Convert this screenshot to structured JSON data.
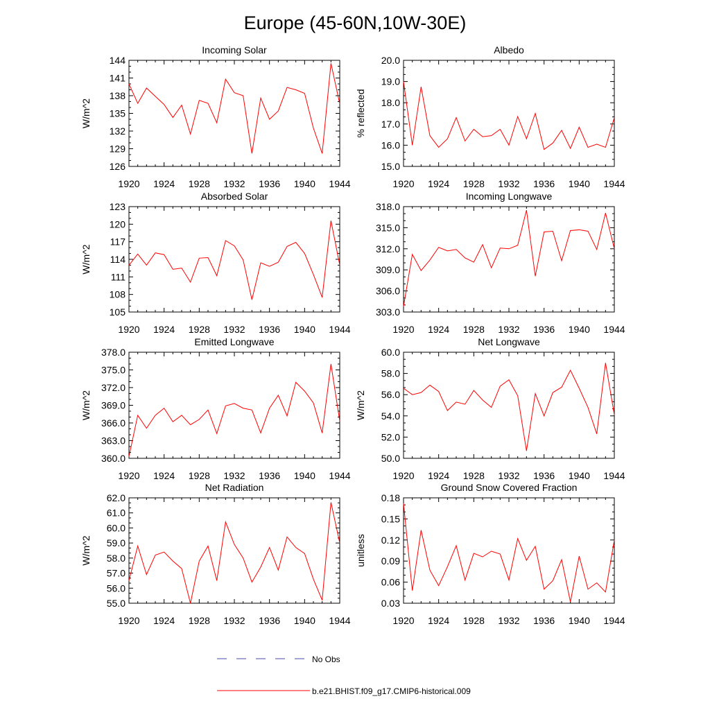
{
  "title": "Europe (45-60N,10W-30E)",
  "legend": {
    "obs_label": "No Obs",
    "obs_color": "#4a4aa8",
    "model_label": "b.e21.BHIST.f09_g17.CMIP6-historical.009",
    "model_color": "#ff0000"
  },
  "chart_data": [
    {
      "type": "line",
      "title": "Incoming Solar",
      "ylabel": "W/m^2",
      "xlim": [
        1920,
        1944
      ],
      "ylim": [
        126,
        144
      ],
      "yticks": [
        "126",
        "129",
        "132",
        "135",
        "138",
        "141",
        "144"
      ],
      "xticks": [
        "1920",
        "1924",
        "1928",
        "1932",
        "1936",
        "1940",
        "1944"
      ],
      "x": [
        1920,
        1921,
        1922,
        1923,
        1924,
        1925,
        1926,
        1927,
        1928,
        1929,
        1930,
        1931,
        1932,
        1933,
        1934,
        1935,
        1936,
        1937,
        1938,
        1939,
        1940,
        1941,
        1942,
        1943,
        1944
      ],
      "series": [
        {
          "values": [
            140.0,
            136.7,
            139.3,
            137.9,
            136.5,
            134.3,
            136.4,
            131.5,
            137.2,
            136.7,
            133.4,
            140.8,
            138.5,
            138.0,
            128.2,
            137.6,
            134.0,
            135.4,
            139.4,
            139.0,
            138.4,
            132.5,
            128.2,
            143.5,
            136.6
          ]
        }
      ]
    },
    {
      "type": "line",
      "title": "Albedo",
      "ylabel": "% reflected",
      "xlim": [
        1920,
        1944
      ],
      "ylim": [
        15,
        20
      ],
      "yticks": [
        "15.0",
        "16.0",
        "17.0",
        "18.0",
        "19.0",
        "20.0"
      ],
      "xticks": [
        "1920",
        "1924",
        "1928",
        "1932",
        "1936",
        "1940",
        "1944"
      ],
      "x": [
        1920,
        1921,
        1922,
        1923,
        1924,
        1925,
        1926,
        1927,
        1928,
        1929,
        1930,
        1931,
        1932,
        1933,
        1934,
        1935,
        1936,
        1937,
        1938,
        1939,
        1940,
        1941,
        1942,
        1943,
        1944
      ],
      "series": [
        {
          "values": [
            19.0,
            16.0,
            18.75,
            16.45,
            15.9,
            16.3,
            17.3,
            16.2,
            16.75,
            16.4,
            16.45,
            16.75,
            16.0,
            17.35,
            16.3,
            17.5,
            15.8,
            16.1,
            16.7,
            15.85,
            16.85,
            15.9,
            16.05,
            15.9,
            17.3
          ]
        }
      ]
    },
    {
      "type": "line",
      "title": "Absorbed Solar",
      "ylabel": "W/m^2",
      "xlim": [
        1920,
        1944
      ],
      "ylim": [
        105,
        123
      ],
      "yticks": [
        "105",
        "108",
        "111",
        "114",
        "117",
        "120",
        "123"
      ],
      "xticks": [
        "1920",
        "1924",
        "1928",
        "1932",
        "1936",
        "1940",
        "1944"
      ],
      "x": [
        1920,
        1921,
        1922,
        1923,
        1924,
        1925,
        1926,
        1927,
        1928,
        1929,
        1930,
        1931,
        1932,
        1933,
        1934,
        1935,
        1936,
        1937,
        1938,
        1939,
        1940,
        1941,
        1942,
        1943,
        1944
      ],
      "series": [
        {
          "values": [
            113.0,
            114.9,
            113.0,
            115.1,
            114.8,
            112.3,
            112.5,
            110.1,
            114.2,
            114.3,
            111.2,
            117.2,
            116.3,
            113.9,
            107.1,
            113.4,
            112.8,
            113.5,
            116.2,
            116.9,
            115.0,
            111.4,
            107.5,
            120.6,
            113.0
          ]
        }
      ]
    },
    {
      "type": "line",
      "title": "Incoming Longwave",
      "ylabel": "",
      "xlim": [
        1920,
        1944
      ],
      "ylim": [
        303,
        318
      ],
      "yticks": [
        "303.0",
        "306.0",
        "309.0",
        "312.0",
        "315.0",
        "318.0"
      ],
      "xticks": [
        "1920",
        "1924",
        "1928",
        "1932",
        "1936",
        "1940",
        "1944"
      ],
      "x": [
        1920,
        1921,
        1922,
        1923,
        1924,
        1925,
        1926,
        1927,
        1928,
        1929,
        1930,
        1931,
        1932,
        1933,
        1934,
        1935,
        1936,
        1937,
        1938,
        1939,
        1940,
        1941,
        1942,
        1943,
        1944
      ],
      "series": [
        {
          "values": [
            303.8,
            311.2,
            308.9,
            310.4,
            312.2,
            311.7,
            311.9,
            310.7,
            310.1,
            312.6,
            309.3,
            312.1,
            312.0,
            312.5,
            317.5,
            308.1,
            314.4,
            314.5,
            310.3,
            314.6,
            314.7,
            314.5,
            311.9,
            317.1,
            312.0
          ]
        }
      ]
    },
    {
      "type": "line",
      "title": "Emitted Longwave",
      "ylabel": "W/m^2",
      "xlim": [
        1920,
        1944
      ],
      "ylim": [
        360,
        378
      ],
      "yticks": [
        "360.0",
        "363.0",
        "366.0",
        "369.0",
        "372.0",
        "375.0",
        "378.0"
      ],
      "xticks": [
        "1920",
        "1924",
        "1928",
        "1932",
        "1936",
        "1940",
        "1944"
      ],
      "x": [
        1920,
        1921,
        1922,
        1923,
        1924,
        1925,
        1926,
        1927,
        1928,
        1929,
        1930,
        1931,
        1932,
        1933,
        1934,
        1935,
        1936,
        1937,
        1938,
        1939,
        1940,
        1941,
        1942,
        1943,
        1944
      ],
      "series": [
        {
          "values": [
            360.3,
            367.3,
            365.1,
            367.3,
            368.5,
            366.2,
            367.3,
            365.7,
            366.6,
            368.2,
            364.2,
            368.9,
            369.3,
            368.5,
            368.2,
            364.3,
            368.5,
            370.7,
            367.2,
            372.9,
            371.4,
            369.4,
            364.3,
            376.0,
            366.3
          ]
        }
      ]
    },
    {
      "type": "line",
      "title": "Net Longwave",
      "ylabel": "W/m^2",
      "xlim": [
        1920,
        1944
      ],
      "ylim": [
        50,
        60
      ],
      "yticks": [
        "50.0",
        "52.0",
        "54.0",
        "56.0",
        "58.0",
        "60.0"
      ],
      "xticks": [
        "1920",
        "1924",
        "1928",
        "1932",
        "1936",
        "1940",
        "1944"
      ],
      "x": [
        1920,
        1921,
        1922,
        1923,
        1924,
        1925,
        1926,
        1927,
        1928,
        1929,
        1930,
        1931,
        1932,
        1933,
        1934,
        1935,
        1936,
        1937,
        1938,
        1939,
        1940,
        1941,
        1942,
        1943,
        1944
      ],
      "series": [
        {
          "values": [
            56.6,
            56.0,
            56.2,
            56.9,
            56.3,
            54.5,
            55.3,
            55.1,
            56.4,
            55.5,
            54.8,
            56.8,
            57.4,
            55.9,
            50.7,
            56.1,
            54.0,
            56.2,
            56.7,
            58.3,
            56.6,
            54.8,
            52.3,
            59.0,
            54.1
          ]
        }
      ]
    },
    {
      "type": "line",
      "title": "Net Radiation",
      "ylabel": "W/m^2",
      "xlim": [
        1920,
        1944
      ],
      "ylim": [
        55,
        62
      ],
      "yticks": [
        "55.0",
        "56.0",
        "57.0",
        "58.0",
        "59.0",
        "60.0",
        "61.0",
        "62.0"
      ],
      "xticks": [
        "1920",
        "1924",
        "1928",
        "1932",
        "1936",
        "1940",
        "1944"
      ],
      "x": [
        1920,
        1921,
        1922,
        1923,
        1924,
        1925,
        1926,
        1927,
        1928,
        1929,
        1930,
        1931,
        1932,
        1933,
        1934,
        1935,
        1936,
        1937,
        1938,
        1939,
        1940,
        1941,
        1942,
        1943,
        1944
      ],
      "series": [
        {
          "values": [
            56.5,
            58.8,
            56.9,
            58.2,
            58.4,
            57.8,
            57.3,
            55.0,
            57.8,
            58.8,
            56.5,
            60.4,
            58.9,
            58.0,
            56.4,
            57.4,
            58.7,
            57.2,
            59.4,
            58.7,
            58.3,
            56.6,
            55.2,
            61.7,
            59.0
          ]
        }
      ]
    },
    {
      "type": "line",
      "title": "Ground Snow Covered Fraction",
      "ylabel": "unitless",
      "xlim": [
        1920,
        1944
      ],
      "ylim": [
        0.03,
        0.18
      ],
      "yticks": [
        "0.03",
        "0.06",
        "0.09",
        "0.12",
        "0.15",
        "0.18"
      ],
      "xticks": [
        "1920",
        "1924",
        "1928",
        "1932",
        "1936",
        "1940",
        "1944"
      ],
      "x": [
        1920,
        1921,
        1922,
        1923,
        1924,
        1925,
        1926,
        1927,
        1928,
        1929,
        1930,
        1931,
        1932,
        1933,
        1934,
        1935,
        1936,
        1937,
        1938,
        1939,
        1940,
        1941,
        1942,
        1943,
        1944
      ],
      "series": [
        {
          "values": [
            0.172,
            0.048,
            0.134,
            0.077,
            0.055,
            0.082,
            0.112,
            0.063,
            0.101,
            0.096,
            0.104,
            0.1,
            0.063,
            0.122,
            0.091,
            0.111,
            0.05,
            0.062,
            0.092,
            0.032,
            0.097,
            0.05,
            0.059,
            0.046,
            0.12
          ]
        }
      ]
    }
  ]
}
